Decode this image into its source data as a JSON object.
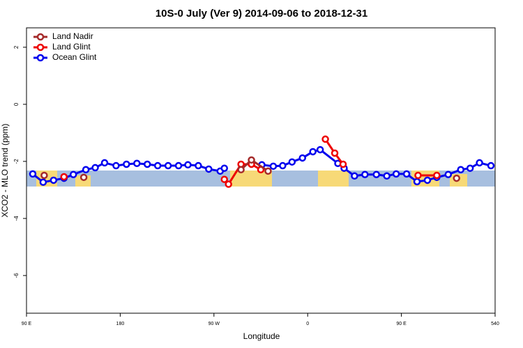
{
  "chart_data": {
    "type": "line",
    "title": "10S-0 July (Ver 9)   2014-09-06 to 2018-12-31",
    "x_label": "Longitude",
    "y_label": "XCO2 - MLO trend (ppm)",
    "xlim": [
      90,
      540
    ],
    "ylim": [
      -7.32,
      2.68
    ],
    "xticks": [
      {
        "value": 90,
        "label": "90 E"
      },
      180,
      {
        "value": 270,
        "label": "90 W"
      },
      {
        "value": 360,
        "label": "0"
      },
      {
        "value": 450,
        "label": "90 E"
      },
      540
    ],
    "yticks": [
      2,
      0,
      -2,
      -4,
      -6
    ],
    "legend": "top-left",
    "series": [
      {
        "name": "Land Nadir",
        "color": "#a52a2a",
        "x": [
          107,
          null,
          145,
          null,
          296,
          306,
          322,
          null,
          503
        ],
        "values": [
          -2.49,
          null,
          -2.56,
          null,
          -2.29,
          -1.95,
          -2.34,
          null,
          -2.59
        ]
      },
      {
        "name": "Land Glint",
        "color": "#ee0000",
        "x": [
          126,
          null,
          280,
          284,
          296,
          306,
          315,
          null,
          377,
          386,
          394,
          null,
          466,
          484
        ],
        "values": [
          -2.54,
          null,
          -2.63,
          -2.8,
          -2.1,
          -2.1,
          -2.29,
          null,
          -1.22,
          -1.71,
          -2.1,
          null,
          -2.49,
          -2.49
        ]
      },
      {
        "name": "Ocean Glint",
        "color": "#0000ee",
        "x": [
          96,
          106,
          116,
          126,
          135,
          147,
          156,
          165,
          176,
          186,
          196,
          206,
          216,
          226,
          236,
          245,
          255,
          265,
          276,
          280,
          null,
          316,
          327,
          336,
          345,
          355,
          365,
          372,
          389,
          395,
          405,
          415,
          426,
          436,
          445,
          455,
          465,
          475,
          484,
          495,
          507,
          516,
          525,
          536
        ],
        "values": [
          -2.44,
          -2.73,
          -2.66,
          -2.59,
          -2.46,
          -2.29,
          -2.22,
          -2.05,
          -2.15,
          -2.1,
          -2.07,
          -2.1,
          -2.15,
          -2.15,
          -2.15,
          -2.12,
          -2.15,
          -2.27,
          -2.34,
          -2.24,
          null,
          -2.12,
          -2.17,
          -2.15,
          -2.02,
          -1.88,
          -1.66,
          -1.59,
          -2.07,
          -2.24,
          -2.51,
          -2.46,
          -2.46,
          -2.51,
          -2.44,
          -2.44,
          -2.71,
          -2.66,
          -2.56,
          -2.46,
          -2.29,
          -2.24,
          -2.05,
          -2.15
        ]
      }
    ]
  }
}
